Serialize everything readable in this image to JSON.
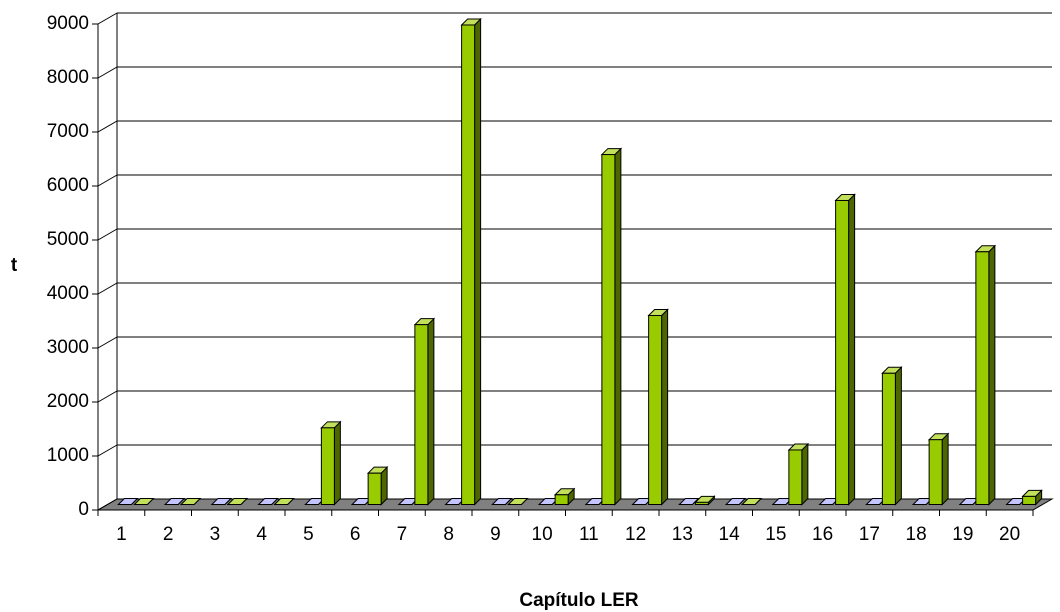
{
  "chart_data": {
    "type": "bar",
    "title": "",
    "xlabel": "Capítulo LER",
    "ylabel": "t",
    "categories": [
      "1",
      "2",
      "3",
      "4",
      "5",
      "6",
      "7",
      "8",
      "9",
      "10",
      "11",
      "12",
      "13",
      "14",
      "15",
      "16",
      "17",
      "18",
      "19",
      "20"
    ],
    "series": [
      {
        "values": [
          0,
          0,
          0,
          0,
          0,
          0,
          0,
          0,
          0,
          0,
          0,
          0,
          0,
          0,
          0,
          0,
          0,
          0,
          0,
          0
        ],
        "color": "#9999ff"
      },
      {
        "values": [
          0,
          0,
          0,
          0,
          1420,
          580,
          3330,
          8880,
          0,
          180,
          6480,
          3500,
          40,
          0,
          1010,
          5630,
          2430,
          1200,
          4680,
          150
        ],
        "color": "#99cc00"
      }
    ],
    "yticks": [
      0,
      1000,
      2000,
      3000,
      4000,
      5000,
      6000,
      7000,
      8000,
      9000
    ],
    "ylim": [
      0,
      9000
    ],
    "grid": true,
    "legend": false,
    "colors": {
      "bar_front": "#99cc00",
      "bar_side": "#4d6600",
      "bar_top": "#c2e05c",
      "floor": "#808080",
      "grid": "#000000"
    }
  }
}
